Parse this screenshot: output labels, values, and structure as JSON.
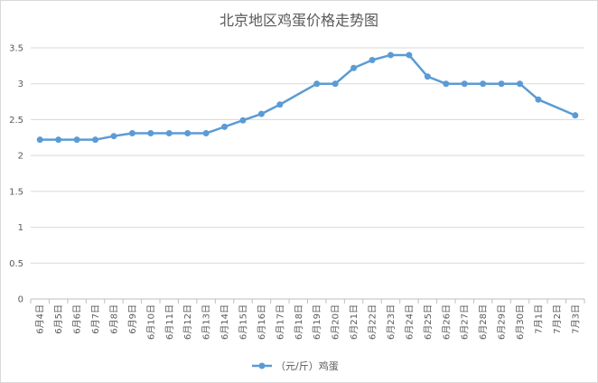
{
  "chart_data": {
    "type": "line",
    "title": "北京地区鸡蛋价格走势图",
    "xlabel": "",
    "ylabel": "",
    "ylim": [
      0,
      3.5
    ],
    "yticks": [
      "0",
      "0.5",
      "1",
      "1.5",
      "2",
      "2.5",
      "3",
      "3.5"
    ],
    "grid": true,
    "legend_position": "bottom",
    "categories": [
      "6月4日",
      "6月5日",
      "6月6日",
      "6月7日",
      "6月8日",
      "6月9日",
      "6月10日",
      "6月11日",
      "6月12日",
      "6月13日",
      "6月14日",
      "6月15日",
      "6月16日",
      "6月17日",
      "6月18日",
      "6月19日",
      "6月20日",
      "6月21日",
      "6月22日",
      "6月23日",
      "6月24日",
      "6月25日",
      "6月26日",
      "6月27日",
      "6月28日",
      "6月29日",
      "6月30日",
      "7月1日",
      "7月2日",
      "7月3日"
    ],
    "series": [
      {
        "name": "（元/斤）鸡蛋",
        "color": "#5b9bd5",
        "values": [
          2.22,
          2.22,
          2.22,
          2.22,
          2.27,
          2.31,
          2.31,
          2.31,
          2.31,
          2.31,
          2.4,
          2.49,
          2.58,
          2.71,
          null,
          3.0,
          3.0,
          3.22,
          3.33,
          3.4,
          3.4,
          3.1,
          3.0,
          3.0,
          3.0,
          3.0,
          3.0,
          2.78,
          null,
          2.56
        ]
      }
    ]
  }
}
